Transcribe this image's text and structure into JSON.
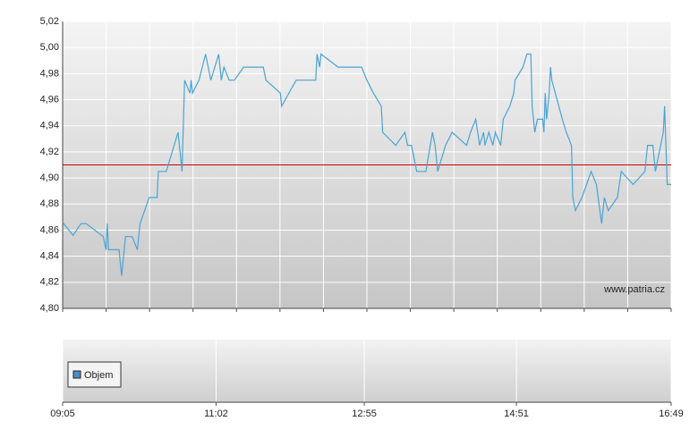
{
  "chart_data": [
    {
      "type": "line",
      "annotation": "www.patria.cz",
      "x": [
        545,
        553,
        559,
        563,
        576,
        578,
        579,
        580,
        588,
        590,
        593,
        598,
        602,
        604,
        611,
        617,
        618,
        624,
        633,
        636,
        638,
        642,
        643,
        644,
        649,
        654,
        658,
        664,
        666,
        668,
        672,
        676,
        683,
        698,
        700,
        711,
        712,
        723,
        738,
        739,
        741,
        742,
        755,
        773,
        777,
        782,
        788,
        789,
        799,
        806,
        808,
        811,
        815,
        822,
        827,
        829,
        831,
        837,
        842,
        853,
        856,
        860,
        863,
        866,
        867,
        870,
        873,
        875,
        879,
        881,
        886,
        889,
        890,
        896,
        899,
        902,
        903,
        905,
        907,
        911,
        912,
        913,
        914,
        916,
        917,
        918,
        926,
        929,
        933,
        934,
        936,
        941,
        948,
        952,
        956,
        958,
        961,
        968,
        971,
        980,
        989,
        991,
        995,
        997,
        1003,
        1004,
        1006,
        1009
      ],
      "series": [
        {
          "color": "#4aa3d4",
          "values": [
            4.866,
            4.856,
            4.865,
            4.865,
            4.855,
            4.845,
            4.865,
            4.845,
            4.845,
            4.825,
            4.855,
            4.855,
            4.845,
            4.865,
            4.885,
            4.885,
            4.905,
            4.905,
            4.935,
            4.905,
            4.975,
            4.965,
            4.975,
            4.965,
            4.975,
            4.995,
            4.975,
            4.995,
            4.975,
            4.985,
            4.975,
            4.975,
            4.985,
            4.985,
            4.975,
            4.965,
            4.955,
            4.975,
            4.975,
            4.995,
            4.985,
            4.995,
            4.985,
            4.985,
            4.975,
            4.965,
            4.955,
            4.935,
            4.925,
            4.935,
            4.925,
            4.925,
            4.905,
            4.905,
            4.935,
            4.925,
            4.905,
            4.925,
            4.935,
            4.925,
            4.935,
            4.945,
            4.925,
            4.935,
            4.925,
            4.935,
            4.925,
            4.935,
            4.925,
            4.945,
            4.955,
            4.965,
            4.975,
            4.985,
            4.995,
            4.995,
            4.955,
            4.935,
            4.945,
            4.945,
            4.935,
            4.965,
            4.945,
            4.965,
            4.985,
            4.975,
            4.945,
            4.935,
            4.925,
            4.885,
            4.875,
            4.885,
            4.905,
            4.895,
            4.865,
            4.885,
            4.875,
            4.885,
            4.905,
            4.895,
            4.905,
            4.925,
            4.925,
            4.905,
            4.935,
            4.955,
            4.895,
            4.895
          ]
        }
      ],
      "reference_line": {
        "value": 4.91,
        "color": "#cc0000"
      },
      "xlim": [
        545,
        1009
      ],
      "xticks": [
        {
          "value": 545,
          "label": "09:05"
        },
        {
          "value": 662,
          "label": "11:02"
        },
        {
          "value": 775,
          "label": "12:55"
        },
        {
          "value": 891,
          "label": "14:51"
        },
        {
          "value": 1009,
          "label": "16:49"
        }
      ],
      "ylim": [
        4.8,
        5.02
      ],
      "yticks": [
        {
          "value": 4.8,
          "label": "4,80"
        },
        {
          "value": 4.82,
          "label": "4,82"
        },
        {
          "value": 4.84,
          "label": "4,84"
        },
        {
          "value": 4.86,
          "label": "4,86"
        },
        {
          "value": 4.88,
          "label": "4,88"
        },
        {
          "value": 4.9,
          "label": "4,90"
        },
        {
          "value": 4.92,
          "label": "4,92"
        },
        {
          "value": 4.94,
          "label": "4,94"
        },
        {
          "value": 4.96,
          "label": "4,96"
        },
        {
          "value": 4.98,
          "label": "4,98"
        },
        {
          "value": 5.0,
          "label": "5,00"
        },
        {
          "value": 5.02,
          "label": "5,02"
        }
      ],
      "grid": true
    },
    {
      "type": "bar",
      "series": [
        {
          "name": "Objem",
          "color": "#4a90c8",
          "values": []
        }
      ]
    }
  ]
}
